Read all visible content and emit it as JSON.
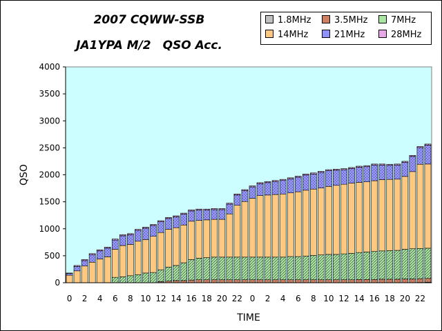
{
  "chart_data": {
    "type": "bar",
    "stacked": true,
    "title": "2007 CQWW-SSB",
    "subtitle": "JA1YPA M/2　QSO Acc.",
    "xlabel": "TIME",
    "ylabel": "QSO",
    "ylim": [
      0,
      4000
    ],
    "yticks": [
      0,
      500,
      1000,
      1500,
      2000,
      2500,
      3000,
      3500,
      4000
    ],
    "categories": [
      "0",
      "1",
      "2",
      "3",
      "4",
      "5",
      "6",
      "7",
      "8",
      "9",
      "10",
      "11",
      "12",
      "13",
      "14",
      "15",
      "16",
      "17",
      "18",
      "19",
      "20",
      "21",
      "22",
      "23",
      "0",
      "1",
      "2",
      "3",
      "4",
      "5",
      "6",
      "7",
      "8",
      "9",
      "10",
      "11",
      "12",
      "13",
      "14",
      "15",
      "16",
      "17",
      "18",
      "19",
      "20",
      "21",
      "22",
      "23"
    ],
    "xtick_labels": [
      "0",
      "",
      "2",
      "",
      "4",
      "",
      "6",
      "",
      "8",
      "",
      "10",
      "",
      "12",
      "",
      "14",
      "",
      "16",
      "",
      "18",
      "",
      "20",
      "",
      "22",
      "",
      "0",
      "",
      "2",
      "",
      "4",
      "",
      "6",
      "",
      "8",
      "",
      "10",
      "",
      "12",
      "",
      "14",
      "",
      "16",
      "",
      "18",
      "",
      "20",
      "",
      "22",
      ""
    ],
    "legend_position": "top-right",
    "grid": false,
    "plot_background": "#ccfeff",
    "series": [
      {
        "name": "1.8MHz",
        "color": "#c0c0c0",
        "pattern": "dots",
        "values": [
          0,
          0,
          0,
          0,
          0,
          0,
          0,
          0,
          0,
          0,
          0,
          0,
          0,
          0,
          0,
          0,
          0,
          0,
          0,
          0,
          0,
          0,
          0,
          0,
          0,
          0,
          0,
          0,
          0,
          0,
          0,
          0,
          0,
          0,
          0,
          0,
          0,
          0,
          0,
          0,
          0,
          0,
          0,
          0,
          0,
          0,
          5,
          10
        ]
      },
      {
        "name": "3.5MHz",
        "color": "#d08060",
        "pattern": "dots",
        "values": [
          0,
          0,
          0,
          0,
          0,
          0,
          0,
          0,
          0,
          0,
          0,
          0,
          20,
          30,
          40,
          40,
          50,
          55,
          55,
          55,
          55,
          55,
          55,
          55,
          55,
          55,
          55,
          55,
          55,
          55,
          55,
          55,
          55,
          55,
          55,
          55,
          55,
          55,
          60,
          60,
          60,
          65,
          65,
          65,
          70,
          70,
          70,
          70
        ]
      },
      {
        "name": "7MHz",
        "color": "#a8e8a0",
        "pattern": "hatch",
        "values": [
          0,
          0,
          0,
          0,
          0,
          0,
          100,
          110,
          130,
          150,
          180,
          190,
          220,
          260,
          280,
          330,
          380,
          400,
          410,
          420,
          420,
          420,
          420,
          420,
          420,
          420,
          420,
          420,
          420,
          430,
          430,
          440,
          450,
          460,
          470,
          470,
          480,
          490,
          500,
          510,
          520,
          525,
          530,
          535,
          550,
          560,
          560,
          560
        ]
      },
      {
        "name": "14MHz",
        "color": "#ffc880",
        "pattern": "none",
        "values": [
          140,
          220,
          310,
          380,
          440,
          480,
          520,
          580,
          580,
          620,
          620,
          670,
          690,
          700,
          700,
          700,
          710,
          700,
          700,
          700,
          700,
          800,
          960,
          1030,
          1090,
          1140,
          1150,
          1160,
          1170,
          1180,
          1200,
          1220,
          1230,
          1240,
          1260,
          1280,
          1290,
          1300,
          1300,
          1300,
          1310,
          1320,
          1320,
          1320,
          1350,
          1430,
          1560,
          1560
        ]
      },
      {
        "name": "21MHz",
        "color": "#9090ff",
        "pattern": "dots",
        "values": [
          30,
          80,
          100,
          140,
          150,
          160,
          170,
          180,
          180,
          200,
          210,
          200,
          200,
          200,
          200,
          200,
          190,
          190,
          180,
          180,
          180,
          180,
          190,
          200,
          210,
          220,
          230,
          240,
          250,
          260,
          270,
          280,
          280,
          290,
          290,
          280,
          270,
          270,
          280,
          280,
          290,
          270,
          260,
          260,
          260,
          280,
          310,
          350
        ]
      },
      {
        "name": "28MHz",
        "color": "#e8a8e8",
        "pattern": "hatch",
        "values": [
          10,
          20,
          20,
          20,
          20,
          20,
          20,
          20,
          20,
          20,
          20,
          20,
          20,
          20,
          20,
          20,
          20,
          20,
          20,
          20,
          20,
          20,
          20,
          20,
          20,
          20,
          20,
          20,
          20,
          20,
          20,
          20,
          20,
          20,
          20,
          20,
          20,
          20,
          20,
          20,
          20,
          20,
          20,
          20,
          20,
          20,
          20,
          20
        ]
      }
    ]
  }
}
